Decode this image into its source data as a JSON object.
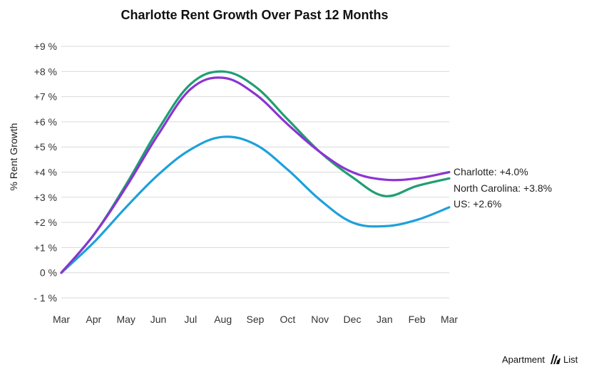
{
  "chart_data": {
    "type": "line",
    "title": "Charlotte Rent Growth Over Past 12 Months",
    "ylabel": "% Rent Growth",
    "xlabel": "",
    "categories": [
      "Mar",
      "Apr",
      "May",
      "Jun",
      "Jul",
      "Aug",
      "Sep",
      "Oct",
      "Nov",
      "Dec",
      "Jan",
      "Feb",
      "Mar"
    ],
    "ylim": [
      -1,
      9
    ],
    "yticks": [
      {
        "value": 9,
        "label": "+9 %"
      },
      {
        "value": 8,
        "label": "+8 %"
      },
      {
        "value": 7,
        "label": "+7 %"
      },
      {
        "value": 6,
        "label": "+6 %"
      },
      {
        "value": 5,
        "label": "+5 %"
      },
      {
        "value": 4,
        "label": "+4 %"
      },
      {
        "value": 3,
        "label": "+3 %"
      },
      {
        "value": 2,
        "label": "+2 %"
      },
      {
        "value": 1,
        "label": "+1 %"
      },
      {
        "value": 0,
        "label": "0 %"
      },
      {
        "value": -1,
        "label": "- 1 %"
      }
    ],
    "grid": true,
    "legend": "end-labels",
    "series": [
      {
        "name": "Charlotte",
        "color": "#8b35d1",
        "end_label": "Charlotte: +4.0%",
        "values": [
          0.0,
          1.5,
          3.4,
          5.5,
          7.3,
          7.75,
          7.1,
          5.9,
          4.8,
          4.0,
          3.7,
          3.75,
          4.0
        ]
      },
      {
        "name": "North Carolina",
        "color": "#1f9e72",
        "end_label": "North Carolina: +3.8%",
        "values": [
          0.0,
          1.5,
          3.5,
          5.7,
          7.5,
          8.0,
          7.4,
          6.1,
          4.8,
          3.8,
          3.05,
          3.45,
          3.75
        ]
      },
      {
        "name": "US",
        "color": "#1ea0dc",
        "end_label": "US: +2.6%",
        "values": [
          0.0,
          1.2,
          2.6,
          3.9,
          4.9,
          5.4,
          5.1,
          4.1,
          2.9,
          2.0,
          1.85,
          2.1,
          2.6
        ]
      }
    ]
  },
  "brand": {
    "name": "Apartment List"
  }
}
